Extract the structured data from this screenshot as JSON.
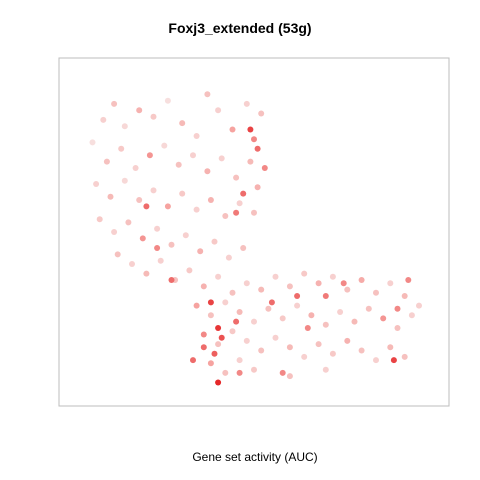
{
  "chart_data": {
    "type": "scatter",
    "title": "Foxj3_extended (53g)",
    "xlabel": "Gene set activity (AUC)",
    "ylabel": "",
    "grid": false,
    "legend": "none",
    "colors": {
      "low": "#f7eeee",
      "mid": "#f6a3a0",
      "high": "#e31a1c",
      "frame": "#bdbdbd"
    },
    "x_range": [
      0,
      1
    ],
    "y_range": [
      0,
      1
    ],
    "points": [
      [
        0.08,
        0.85,
        0.2
      ],
      [
        0.11,
        0.9,
        0.3
      ],
      [
        0.14,
        0.83,
        0.15
      ],
      [
        0.18,
        0.88,
        0.4
      ],
      [
        0.22,
        0.86,
        0.25
      ],
      [
        0.26,
        0.91,
        0.1
      ],
      [
        0.3,
        0.84,
        0.35
      ],
      [
        0.34,
        0.8,
        0.2
      ],
      [
        0.37,
        0.93,
        0.3
      ],
      [
        0.4,
        0.88,
        0.2
      ],
      [
        0.44,
        0.82,
        0.5
      ],
      [
        0.48,
        0.9,
        0.2
      ],
      [
        0.52,
        0.87,
        0.3
      ],
      [
        0.5,
        0.79,
        0.6
      ],
      [
        0.05,
        0.78,
        0.1
      ],
      [
        0.09,
        0.72,
        0.3
      ],
      [
        0.13,
        0.76,
        0.25
      ],
      [
        0.17,
        0.7,
        0.2
      ],
      [
        0.21,
        0.74,
        0.55
      ],
      [
        0.25,
        0.77,
        0.15
      ],
      [
        0.29,
        0.71,
        0.3
      ],
      [
        0.33,
        0.74,
        0.2
      ],
      [
        0.37,
        0.69,
        0.4
      ],
      [
        0.41,
        0.73,
        0.2
      ],
      [
        0.45,
        0.67,
        0.3
      ],
      [
        0.49,
        0.72,
        0.35
      ],
      [
        0.53,
        0.7,
        0.6
      ],
      [
        0.51,
        0.64,
        0.4
      ],
      [
        0.06,
        0.65,
        0.2
      ],
      [
        0.1,
        0.61,
        0.35
      ],
      [
        0.14,
        0.66,
        0.15
      ],
      [
        0.18,
        0.6,
        0.3
      ],
      [
        0.22,
        0.63,
        0.2
      ],
      [
        0.26,
        0.58,
        0.5
      ],
      [
        0.3,
        0.62,
        0.25
      ],
      [
        0.34,
        0.57,
        0.2
      ],
      [
        0.38,
        0.6,
        0.4
      ],
      [
        0.42,
        0.55,
        0.3
      ],
      [
        0.46,
        0.59,
        0.2
      ],
      [
        0.5,
        0.56,
        0.3
      ],
      [
        0.07,
        0.54,
        0.25
      ],
      [
        0.11,
        0.5,
        0.2
      ],
      [
        0.15,
        0.53,
        0.3
      ],
      [
        0.19,
        0.48,
        0.55
      ],
      [
        0.23,
        0.51,
        0.2
      ],
      [
        0.27,
        0.46,
        0.3
      ],
      [
        0.31,
        0.49,
        0.2
      ],
      [
        0.35,
        0.44,
        0.4
      ],
      [
        0.39,
        0.47,
        0.25
      ],
      [
        0.43,
        0.42,
        0.2
      ],
      [
        0.47,
        0.45,
        0.3
      ],
      [
        0.12,
        0.43,
        0.3
      ],
      [
        0.16,
        0.4,
        0.2
      ],
      [
        0.2,
        0.37,
        0.35
      ],
      [
        0.24,
        0.41,
        0.2
      ],
      [
        0.28,
        0.35,
        0.3
      ],
      [
        0.32,
        0.38,
        0.25
      ],
      [
        0.36,
        0.33,
        0.4
      ],
      [
        0.4,
        0.36,
        0.2
      ],
      [
        0.44,
        0.31,
        0.3
      ],
      [
        0.48,
        0.34,
        0.2
      ],
      [
        0.52,
        0.32,
        0.35
      ],
      [
        0.56,
        0.36,
        0.2
      ],
      [
        0.6,
        0.33,
        0.3
      ],
      [
        0.64,
        0.37,
        0.25
      ],
      [
        0.68,
        0.34,
        0.4
      ],
      [
        0.72,
        0.36,
        0.2
      ],
      [
        0.76,
        0.32,
        0.3
      ],
      [
        0.8,
        0.35,
        0.45
      ],
      [
        0.84,
        0.31,
        0.3
      ],
      [
        0.88,
        0.34,
        0.2
      ],
      [
        0.92,
        0.3,
        0.35
      ],
      [
        0.96,
        0.27,
        0.2
      ],
      [
        0.34,
        0.27,
        0.5
      ],
      [
        0.38,
        0.24,
        0.3
      ],
      [
        0.42,
        0.28,
        0.2
      ],
      [
        0.46,
        0.25,
        0.35
      ],
      [
        0.5,
        0.22,
        0.2
      ],
      [
        0.54,
        0.26,
        0.3
      ],
      [
        0.58,
        0.23,
        0.25
      ],
      [
        0.62,
        0.27,
        0.2
      ],
      [
        0.66,
        0.24,
        0.4
      ],
      [
        0.7,
        0.21,
        0.3
      ],
      [
        0.74,
        0.25,
        0.2
      ],
      [
        0.78,
        0.22,
        0.35
      ],
      [
        0.82,
        0.26,
        0.3
      ],
      [
        0.86,
        0.23,
        0.55
      ],
      [
        0.9,
        0.2,
        0.3
      ],
      [
        0.94,
        0.24,
        0.2
      ],
      [
        0.36,
        0.18,
        0.6
      ],
      [
        0.4,
        0.15,
        0.3
      ],
      [
        0.44,
        0.19,
        0.25
      ],
      [
        0.48,
        0.16,
        0.2
      ],
      [
        0.52,
        0.13,
        0.3
      ],
      [
        0.56,
        0.17,
        0.2
      ],
      [
        0.6,
        0.14,
        0.35
      ],
      [
        0.64,
        0.11,
        0.2
      ],
      [
        0.68,
        0.15,
        0.3
      ],
      [
        0.72,
        0.12,
        0.25
      ],
      [
        0.76,
        0.16,
        0.4
      ],
      [
        0.8,
        0.13,
        0.3
      ],
      [
        0.84,
        0.1,
        0.2
      ],
      [
        0.88,
        0.14,
        0.35
      ],
      [
        0.92,
        0.11,
        0.3
      ],
      [
        0.38,
        0.09,
        0.5
      ],
      [
        0.42,
        0.06,
        0.3
      ],
      [
        0.46,
        0.1,
        0.2
      ],
      [
        0.5,
        0.07,
        0.25
      ],
      [
        0.6,
        0.05,
        0.3
      ],
      [
        0.7,
        0.07,
        0.2
      ],
      [
        0.38,
        0.28,
        0.85
      ],
      [
        0.4,
        0.2,
        0.9
      ],
      [
        0.41,
        0.17,
        0.8
      ],
      [
        0.39,
        0.12,
        0.75
      ],
      [
        0.4,
        0.03,
        0.95
      ],
      [
        0.45,
        0.22,
        0.7
      ],
      [
        0.36,
        0.14,
        0.7
      ],
      [
        0.49,
        0.82,
        0.85
      ],
      [
        0.51,
        0.76,
        0.7
      ],
      [
        0.47,
        0.62,
        0.7
      ],
      [
        0.45,
        0.56,
        0.65
      ],
      [
        0.27,
        0.35,
        0.7
      ],
      [
        0.89,
        0.1,
        0.85
      ],
      [
        0.93,
        0.35,
        0.6
      ],
      [
        0.9,
        0.26,
        0.6
      ],
      [
        0.62,
        0.3,
        0.7
      ],
      [
        0.7,
        0.3,
        0.65
      ],
      [
        0.75,
        0.34,
        0.6
      ],
      [
        0.33,
        0.1,
        0.7
      ],
      [
        0.2,
        0.58,
        0.7
      ],
      [
        0.23,
        0.45,
        0.6
      ],
      [
        0.55,
        0.28,
        0.7
      ],
      [
        0.65,
        0.2,
        0.6
      ],
      [
        0.46,
        0.06,
        0.6
      ],
      [
        0.58,
        0.06,
        0.6
      ]
    ]
  }
}
